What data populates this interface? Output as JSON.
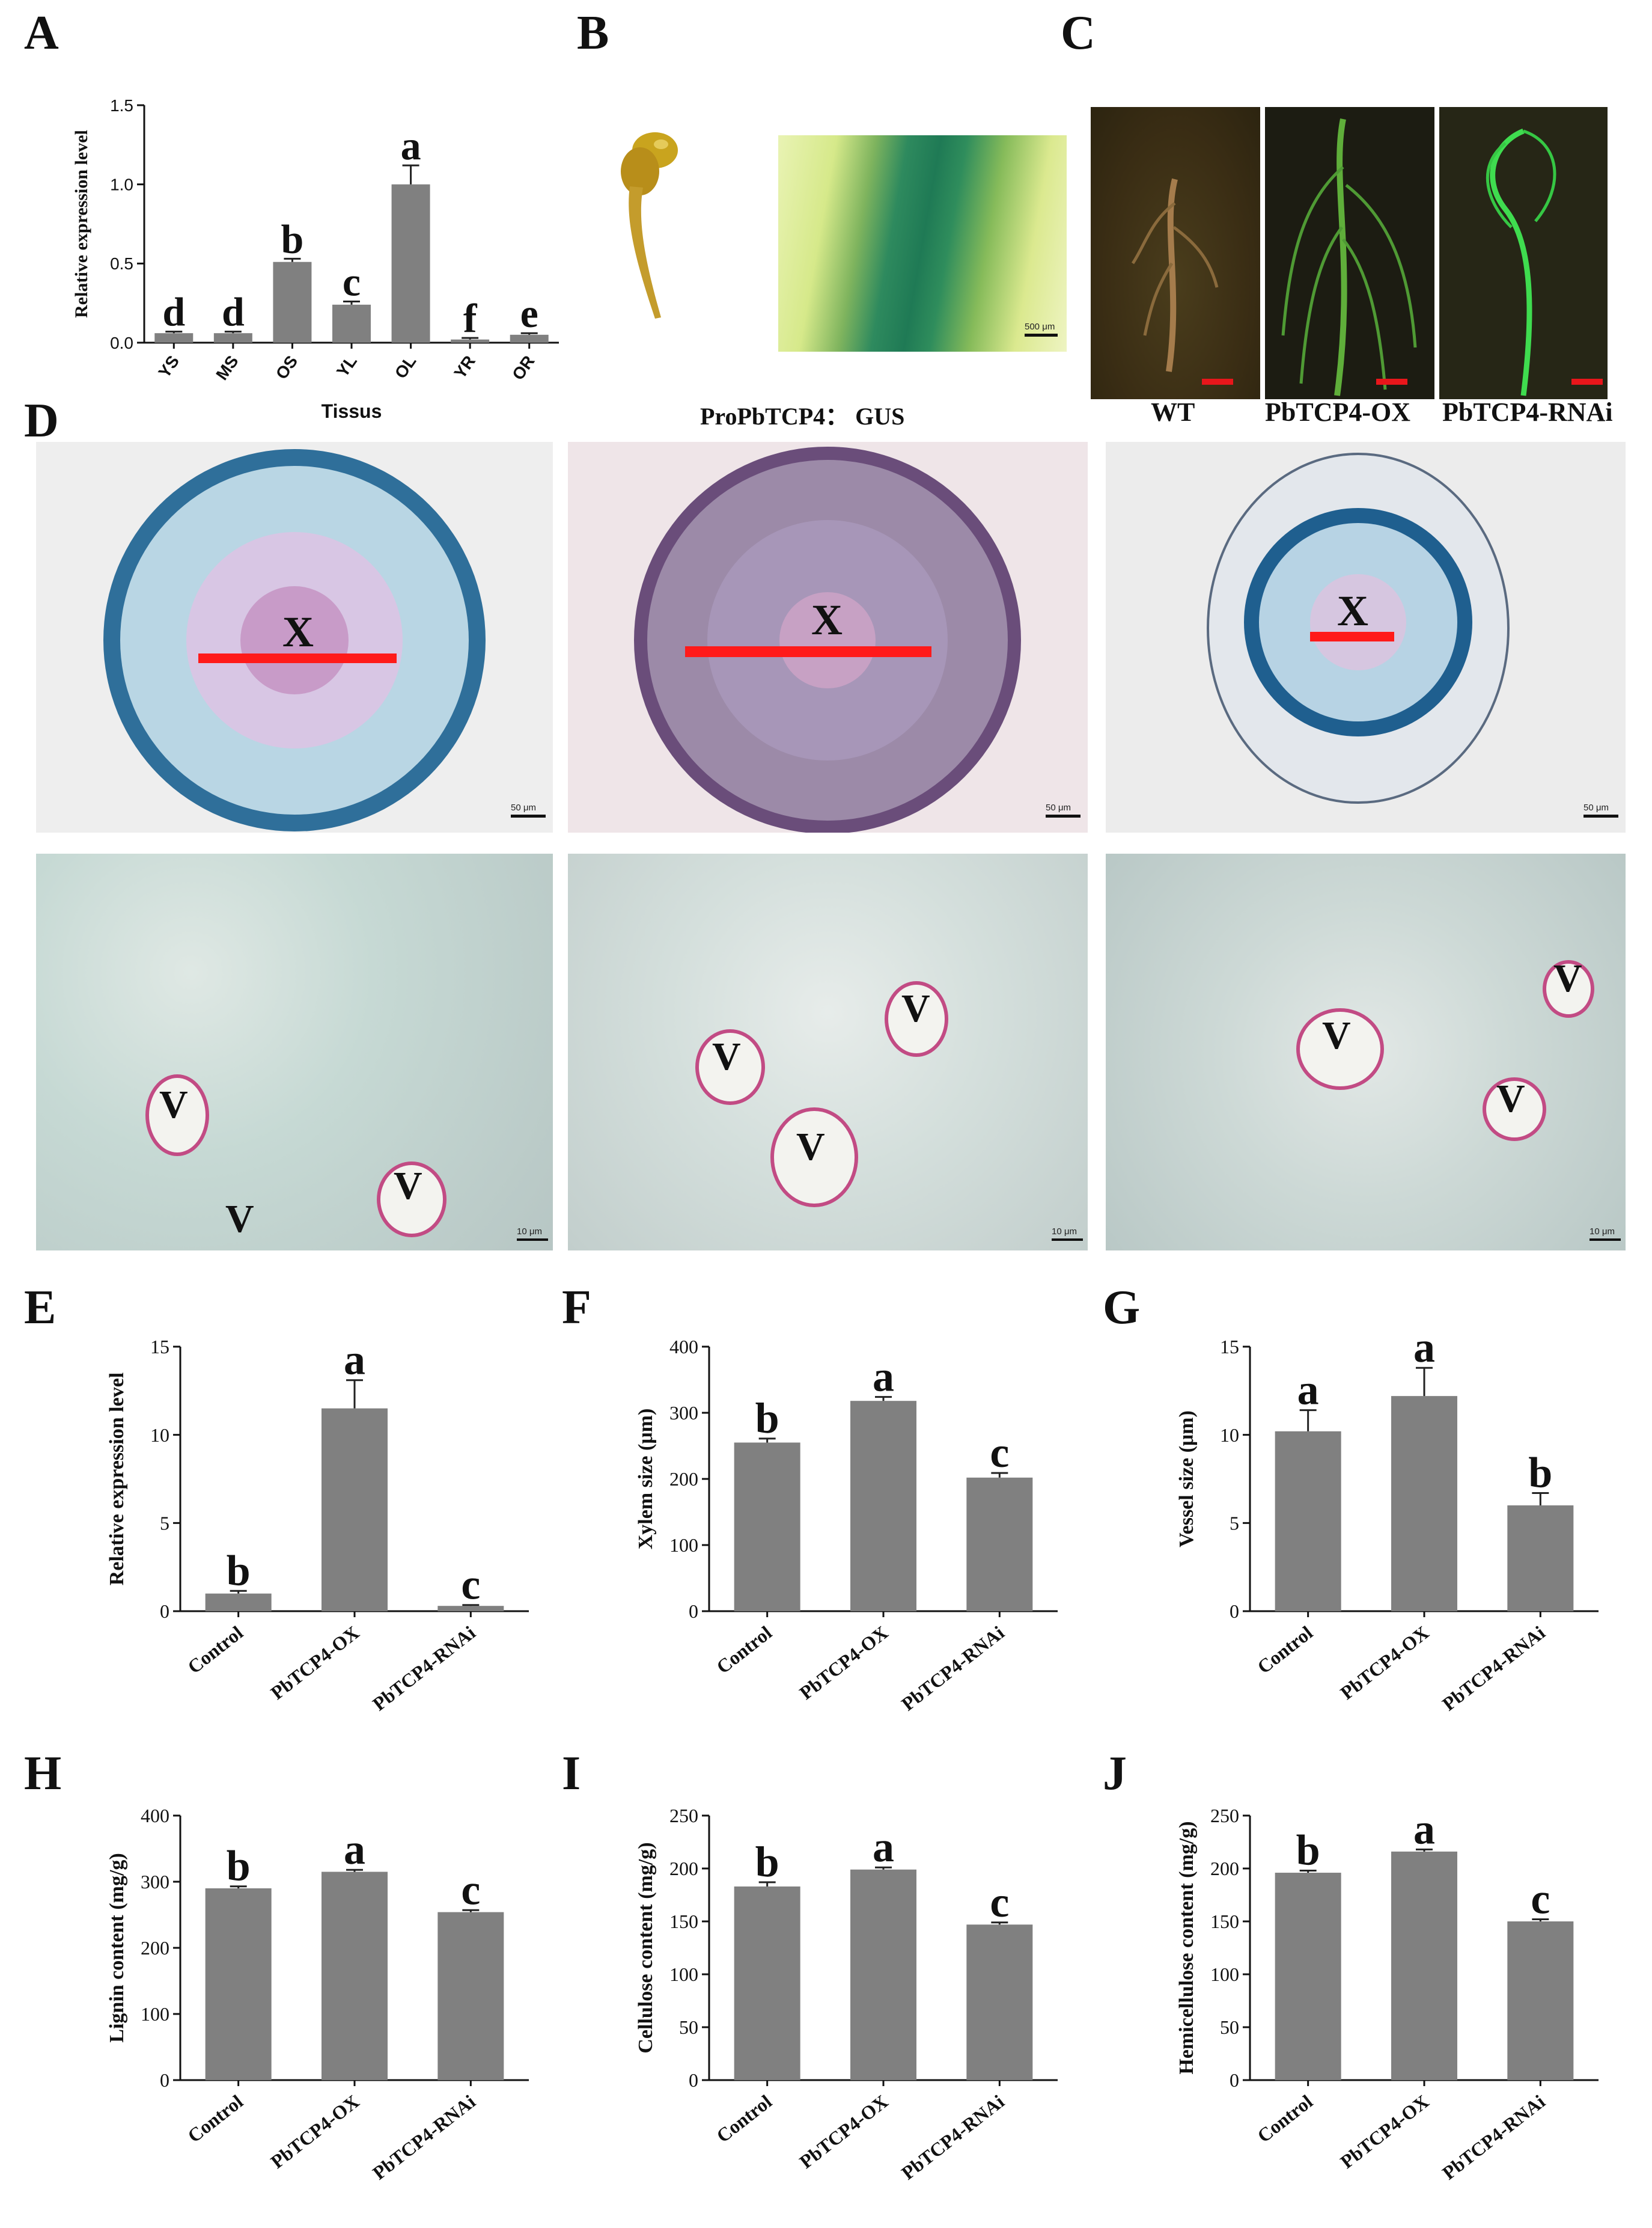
{
  "panels": {
    "A": "A",
    "B": "B",
    "C": "C",
    "D": "D",
    "E": "E",
    "F": "F",
    "G": "G",
    "H": "H",
    "I": "I",
    "J": "J"
  },
  "captions": {
    "b": "ProPbTCP4： GUS",
    "c_wt": "WT",
    "c_ox": "PbTCP4-OX",
    "c_rnai": "PbTCP4-RNAi"
  },
  "image_labels": {
    "x": "X",
    "v": "V",
    "scale_500": "500 μm",
    "scale_50": "50 μm",
    "scale_10": "10 μm"
  },
  "colors": {
    "bar": "#808080",
    "axis": "#111111",
    "scale_red": "#e8161b",
    "measure_red": "#ff1a1a"
  },
  "chart_data": [
    {
      "id": "A",
      "type": "bar",
      "categories": [
        "YS",
        "MS",
        "OS",
        "YL",
        "OL",
        "YR",
        "OR"
      ],
      "values": [
        0.06,
        0.06,
        0.51,
        0.24,
        1.0,
        0.02,
        0.05
      ],
      "errors": [
        0.01,
        0.01,
        0.02,
        0.02,
        0.12,
        0.01,
        0.01
      ],
      "letters": [
        "d",
        "d",
        "b",
        "c",
        "a",
        "f",
        "e"
      ],
      "xlabel": "Tissus",
      "ylabel": "Relative expression level",
      "ylim": [
        0,
        1.5
      ],
      "yticks": [
        0,
        0.5,
        1.0,
        1.5
      ],
      "ytick_labels": [
        "0.0",
        "0.5",
        "1.0",
        "1.5"
      ]
    },
    {
      "id": "E",
      "type": "bar",
      "categories": [
        "Control",
        "PbTCP4-OX",
        "PbTCP4-RNAi"
      ],
      "values": [
        1.0,
        11.5,
        0.3
      ],
      "errors": [
        0.15,
        1.6,
        0.05
      ],
      "letters": [
        "b",
        "a",
        "c"
      ],
      "xlabel": "",
      "ylabel": "Relative expression level",
      "ylim": [
        0,
        15
      ],
      "yticks": [
        0,
        5,
        10,
        15
      ],
      "ytick_labels": [
        "0",
        "5",
        "10",
        "15"
      ]
    },
    {
      "id": "F",
      "type": "bar",
      "categories": [
        "Control",
        "PbTCP4-OX",
        "PbTCP4-RNAi"
      ],
      "values": [
        255,
        318,
        202
      ],
      "errors": [
        6,
        6,
        7
      ],
      "letters": [
        "b",
        "a",
        "c"
      ],
      "xlabel": "",
      "ylabel": "Xylem size (μm)",
      "ylim": [
        0,
        400
      ],
      "yticks": [
        0,
        100,
        200,
        300,
        400
      ],
      "ytick_labels": [
        "0",
        "100",
        "200",
        "300",
        "400"
      ]
    },
    {
      "id": "G",
      "type": "bar",
      "categories": [
        "Control",
        "PbTCP4-OX",
        "PbTCP4-RNAi"
      ],
      "values": [
        10.2,
        12.2,
        6.0
      ],
      "errors": [
        1.2,
        1.6,
        0.7
      ],
      "letters": [
        "a",
        "a",
        "b"
      ],
      "xlabel": "",
      "ylabel": "Vessel size (μm)",
      "ylim": [
        0,
        15
      ],
      "yticks": [
        0,
        5,
        10,
        15
      ],
      "ytick_labels": [
        "0",
        "5",
        "10",
        "15"
      ]
    },
    {
      "id": "H",
      "type": "bar",
      "categories": [
        "Control",
        "PbTCP4-OX",
        "PbTCP4-RNAi"
      ],
      "values": [
        290,
        315,
        254
      ],
      "errors": [
        3,
        3,
        3
      ],
      "letters": [
        "b",
        "a",
        "c"
      ],
      "xlabel": "",
      "ylabel": "Lignin content (mg/g)",
      "ylim": [
        0,
        400
      ],
      "yticks": [
        0,
        100,
        200,
        300,
        400
      ],
      "ytick_labels": [
        "0",
        "100",
        "200",
        "300",
        "400"
      ]
    },
    {
      "id": "I",
      "type": "bar",
      "categories": [
        "Control",
        "PbTCP4-OX",
        "PbTCP4-RNAi"
      ],
      "values": [
        183,
        199,
        147
      ],
      "errors": [
        4,
        2,
        2
      ],
      "letters": [
        "b",
        "a",
        "c"
      ],
      "xlabel": "",
      "ylabel": "Cellulose content (mg/g)",
      "ylim": [
        0,
        250
      ],
      "yticks": [
        0,
        50,
        100,
        150,
        200,
        250
      ],
      "ytick_labels": [
        "0",
        "50",
        "100",
        "150",
        "200",
        "250"
      ]
    },
    {
      "id": "J",
      "type": "bar",
      "categories": [
        "Control",
        "PbTCP4-OX",
        "PbTCP4-RNAi"
      ],
      "values": [
        196,
        216,
        150
      ],
      "errors": [
        2,
        2,
        2
      ],
      "letters": [
        "b",
        "a",
        "c"
      ],
      "xlabel": "",
      "ylabel": "Hemicellulose content (mg/g)",
      "ylim": [
        0,
        250
      ],
      "yticks": [
        0,
        50,
        100,
        150,
        200,
        250
      ],
      "ytick_labels": [
        "0",
        "50",
        "100",
        "150",
        "200",
        "250"
      ]
    }
  ]
}
